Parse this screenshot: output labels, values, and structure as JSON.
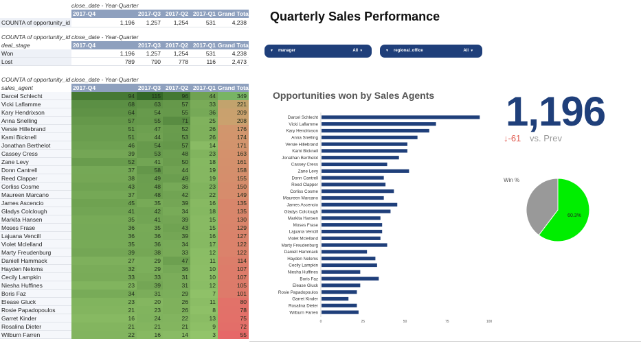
{
  "table1": {
    "meta": "close_date - Year-Quarter",
    "headers": [
      "2017-Q4",
      "2017-Q3",
      "2017-Q2",
      "2017-Q1",
      "Grand Total"
    ],
    "row_label": "COUNTA of opportunity_id",
    "values": [
      "1,196",
      "1,257",
      "1,254",
      "531",
      "4,238"
    ]
  },
  "table2": {
    "meta_left": "COUNTA of opportunity_id",
    "meta_right": "close_date - Year-Quarter",
    "dim": "deal_stage",
    "headers": [
      "2017-Q4",
      "2017-Q3",
      "2017-Q2",
      "2017-Q1",
      "Grand Total"
    ],
    "rows": [
      {
        "label": "Won",
        "values": [
          "1,196",
          "1,257",
          "1,254",
          "531",
          "4,238"
        ]
      },
      {
        "label": "Lost",
        "values": [
          "789",
          "790",
          "778",
          "116",
          "2,473"
        ]
      }
    ]
  },
  "table3": {
    "meta_left": "COUNTA of opportunity_id",
    "meta_right": "close_date - Year-Quarter",
    "dim": "sales_agent",
    "headers": [
      "2017-Q4",
      "2017-Q3",
      "2017-Q2",
      "2017-Q1",
      "Grand Total"
    ],
    "rows": [
      {
        "label": "Darcel Schlecht",
        "values": [
          94,
          115,
          96,
          44,
          349
        ]
      },
      {
        "label": "Vicki Laflamme",
        "values": [
          68,
          63,
          57,
          33,
          221
        ]
      },
      {
        "label": "Kary Hendrixson",
        "values": [
          64,
          54,
          55,
          36,
          209
        ]
      },
      {
        "label": "Anna Snelling",
        "values": [
          57,
          55,
          71,
          25,
          208
        ]
      },
      {
        "label": "Versie Hillebrand",
        "values": [
          51,
          47,
          52,
          26,
          176
        ]
      },
      {
        "label": "Kami Bicknell",
        "values": [
          51,
          44,
          53,
          26,
          174
        ]
      },
      {
        "label": "Jonathan Berthelot",
        "values": [
          46,
          54,
          57,
          14,
          171
        ]
      },
      {
        "label": "Cassey Cress",
        "values": [
          39,
          53,
          48,
          23,
          163
        ]
      },
      {
        "label": "Zane Levy",
        "values": [
          52,
          41,
          50,
          18,
          161
        ]
      },
      {
        "label": "Donn Cantrell",
        "values": [
          37,
          58,
          44,
          19,
          158
        ]
      },
      {
        "label": "Reed Clapper",
        "values": [
          38,
          49,
          49,
          19,
          155
        ]
      },
      {
        "label": "Corliss Cosme",
        "values": [
          43,
          48,
          36,
          23,
          150
        ]
      },
      {
        "label": "Maureen Marcano",
        "values": [
          37,
          48,
          42,
          22,
          149
        ]
      },
      {
        "label": "James Ascencio",
        "values": [
          45,
          35,
          39,
          16,
          135
        ]
      },
      {
        "label": "Gladys Colclough",
        "values": [
          41,
          42,
          34,
          18,
          135
        ]
      },
      {
        "label": "Markita Hansen",
        "values": [
          35,
          41,
          39,
          15,
          130
        ]
      },
      {
        "label": "Moses Frase",
        "values": [
          36,
          35,
          43,
          15,
          129
        ]
      },
      {
        "label": "Lajuana Vencill",
        "values": [
          36,
          36,
          39,
          16,
          127
        ]
      },
      {
        "label": "Violet Mclelland",
        "values": [
          35,
          36,
          34,
          17,
          122
        ]
      },
      {
        "label": "Marty Freudenburg",
        "values": [
          39,
          38,
          33,
          12,
          122
        ]
      },
      {
        "label": "Daniell Hammack",
        "values": [
          27,
          29,
          47,
          11,
          114
        ]
      },
      {
        "label": "Hayden Neloms",
        "values": [
          32,
          29,
          36,
          10,
          107
        ]
      },
      {
        "label": "Cecily Lampkin",
        "values": [
          33,
          33,
          31,
          10,
          107
        ]
      },
      {
        "label": "Niesha Huffines",
        "values": [
          23,
          39,
          31,
          12,
          105
        ]
      },
      {
        "label": "Boris Faz",
        "values": [
          34,
          31,
          29,
          7,
          101
        ]
      },
      {
        "label": "Elease Gluck",
        "values": [
          23,
          20,
          26,
          11,
          80
        ]
      },
      {
        "label": "Rosie Papadopoulos",
        "values": [
          21,
          23,
          26,
          8,
          78
        ]
      },
      {
        "label": "Garret Kinder",
        "values": [
          16,
          24,
          22,
          13,
          75
        ]
      },
      {
        "label": "Rosalina Dieter",
        "values": [
          21,
          21,
          21,
          9,
          72
        ]
      },
      {
        "label": "Wilburn Farren",
        "values": [
          22,
          16,
          14,
          3,
          55
        ]
      }
    ]
  },
  "dashboard": {
    "title": "Quarterly Sales Performance",
    "filters": [
      {
        "label": "manager",
        "value": "All"
      },
      {
        "label": "regional_office",
        "value": "All"
      }
    ]
  },
  "chart_data": {
    "type": "bar",
    "orientation": "horizontal",
    "title": "Opportunities won by Sales Agents",
    "categories": [
      "Darcel Schlecht",
      "Vicki Laflamme",
      "Kary Hendrixson",
      "Anna Snelling",
      "Versie Hillebrand",
      "Kami Bicknell",
      "Jonathan Berthelot",
      "Cassey Cress",
      "Zane Levy",
      "Donn Cantrell",
      "Reed Clapper",
      "Corliss Cosme",
      "Maureen Marcano",
      "James Ascencio",
      "Gladys Colclough",
      "Markita Hansen",
      "Moses Frase",
      "Lajuana Vencill",
      "Violet Mclelland",
      "Marty Freudenburg",
      "Daniell Hammack",
      "Hayden Neloms",
      "Cecily Lampkin",
      "Niesha Huffines",
      "Boris Faz",
      "Elease Gluck",
      "Rosie Papadopoulos",
      "Garret Kinder",
      "Rosalina Dieter",
      "Wilburn Farren"
    ],
    "values": [
      94,
      68,
      64,
      57,
      51,
      51,
      46,
      39,
      52,
      37,
      38,
      43,
      37,
      45,
      41,
      35,
      36,
      36,
      35,
      39,
      27,
      32,
      33,
      23,
      34,
      23,
      21,
      16,
      21,
      22
    ],
    "xlim": [
      0,
      100
    ],
    "xticks": [
      0,
      25,
      50,
      75,
      100
    ],
    "color": "#1f3f7a"
  },
  "kpi": {
    "value": "1,196",
    "delta": "-61",
    "delta_suffix": "vs. Prev",
    "arrow": "↓"
  },
  "pie": {
    "label": "Win %",
    "win_pct": 60.3,
    "win_label": "60.3%",
    "win_color": "#00ee00",
    "rest_color": "#999999"
  }
}
